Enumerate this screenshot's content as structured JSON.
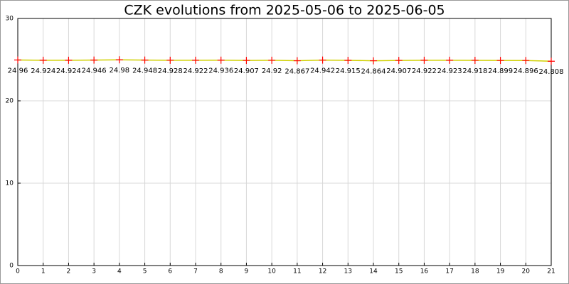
{
  "chart_data": {
    "type": "line",
    "title": "CZK evolutions from 2025-05-06 to 2025-06-05",
    "x": [
      0,
      1,
      2,
      3,
      4,
      5,
      6,
      7,
      8,
      9,
      10,
      11,
      12,
      13,
      14,
      15,
      16,
      17,
      18,
      19,
      20,
      21
    ],
    "series": [
      {
        "color": "#d0d000",
        "marker_color": "#ff0000",
        "values": [
          24.96,
          24.924,
          24.924,
          24.946,
          24.98,
          24.948,
          24.928,
          24.922,
          24.936,
          24.907,
          24.92,
          24.867,
          24.942,
          24.915,
          24.864,
          24.907,
          24.922,
          24.923,
          24.918,
          24.899,
          24.896,
          24.808
        ]
      }
    ],
    "xlim": [
      0,
      21
    ],
    "xticks": [
      0,
      1,
      2,
      3,
      4,
      5,
      6,
      7,
      8,
      9,
      10,
      11,
      12,
      13,
      14,
      15,
      16,
      17,
      18,
      19,
      20,
      21
    ],
    "ylim": [
      0,
      30
    ],
    "yticks": [
      0,
      10,
      20,
      30
    ],
    "grid": true
  }
}
